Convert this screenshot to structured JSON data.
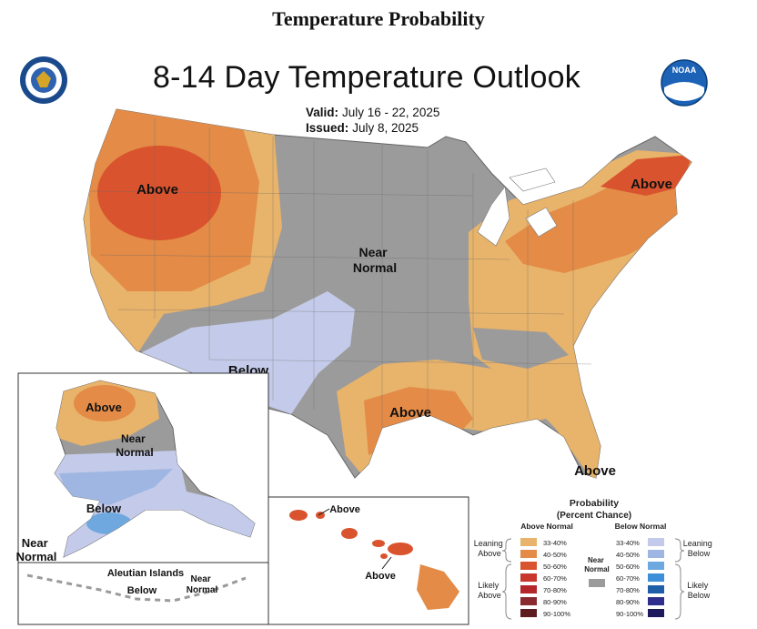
{
  "page_title": "Temperature Probability",
  "map": {
    "title": "8-14 Day Temperature Outlook",
    "valid_label": "Valid:",
    "valid_value": "July 16 - 22, 2025",
    "issued_label": "Issued:",
    "issued_value": "July 8, 2025"
  },
  "logos": {
    "left": "commerce-seal-icon",
    "right": "noaa-logo-icon",
    "right_text": "NOAA"
  },
  "regions": {
    "west": "Above",
    "near_normal": "Near\nNormal",
    "southwest": "Below",
    "texas": "Above",
    "northeast": "Above",
    "florida": "Above"
  },
  "alaska": {
    "north": "Above",
    "middle": "Near\nNormal",
    "south": "Below",
    "southwest": "Near\nNormal",
    "aleutian_title": "Aleutian Islands",
    "aleutian_below": "Below",
    "aleutian_near": "Near\nNormal"
  },
  "hawaii": {
    "top": "Above",
    "bottom": "Above"
  },
  "legend": {
    "title": "Probability",
    "subtitle": "(Percent Chance)",
    "above_header": "Above Normal",
    "below_header": "Below Normal",
    "near_label": "Near\nNormal",
    "leaning_above": "Leaning\nAbove",
    "likely_above": "Likely\nAbove",
    "leaning_below": "Leaning\nBelow",
    "likely_below": "Likely\nBelow",
    "above": [
      {
        "range": "33-40%",
        "color": "#e8b36a"
      },
      {
        "range": "40-50%",
        "color": "#e38b47"
      },
      {
        "range": "50-60%",
        "color": "#d9532e"
      },
      {
        "range": "60-70%",
        "color": "#c9362b"
      },
      {
        "range": "70-80%",
        "color": "#b3262a"
      },
      {
        "range": "80-90%",
        "color": "#8b2a2e"
      },
      {
        "range": "90-100%",
        "color": "#5e1b20"
      }
    ],
    "below": [
      {
        "range": "33-40%",
        "color": "#c4cbea"
      },
      {
        "range": "40-50%",
        "color": "#9fb6e2"
      },
      {
        "range": "50-60%",
        "color": "#6fa8df"
      },
      {
        "range": "60-70%",
        "color": "#3c8fd8"
      },
      {
        "range": "70-80%",
        "color": "#1f5fa8"
      },
      {
        "range": "80-90%",
        "color": "#2f2e8c"
      },
      {
        "range": "90-100%",
        "color": "#1d1b5c"
      }
    ],
    "near_color": "#9b9b9b"
  }
}
